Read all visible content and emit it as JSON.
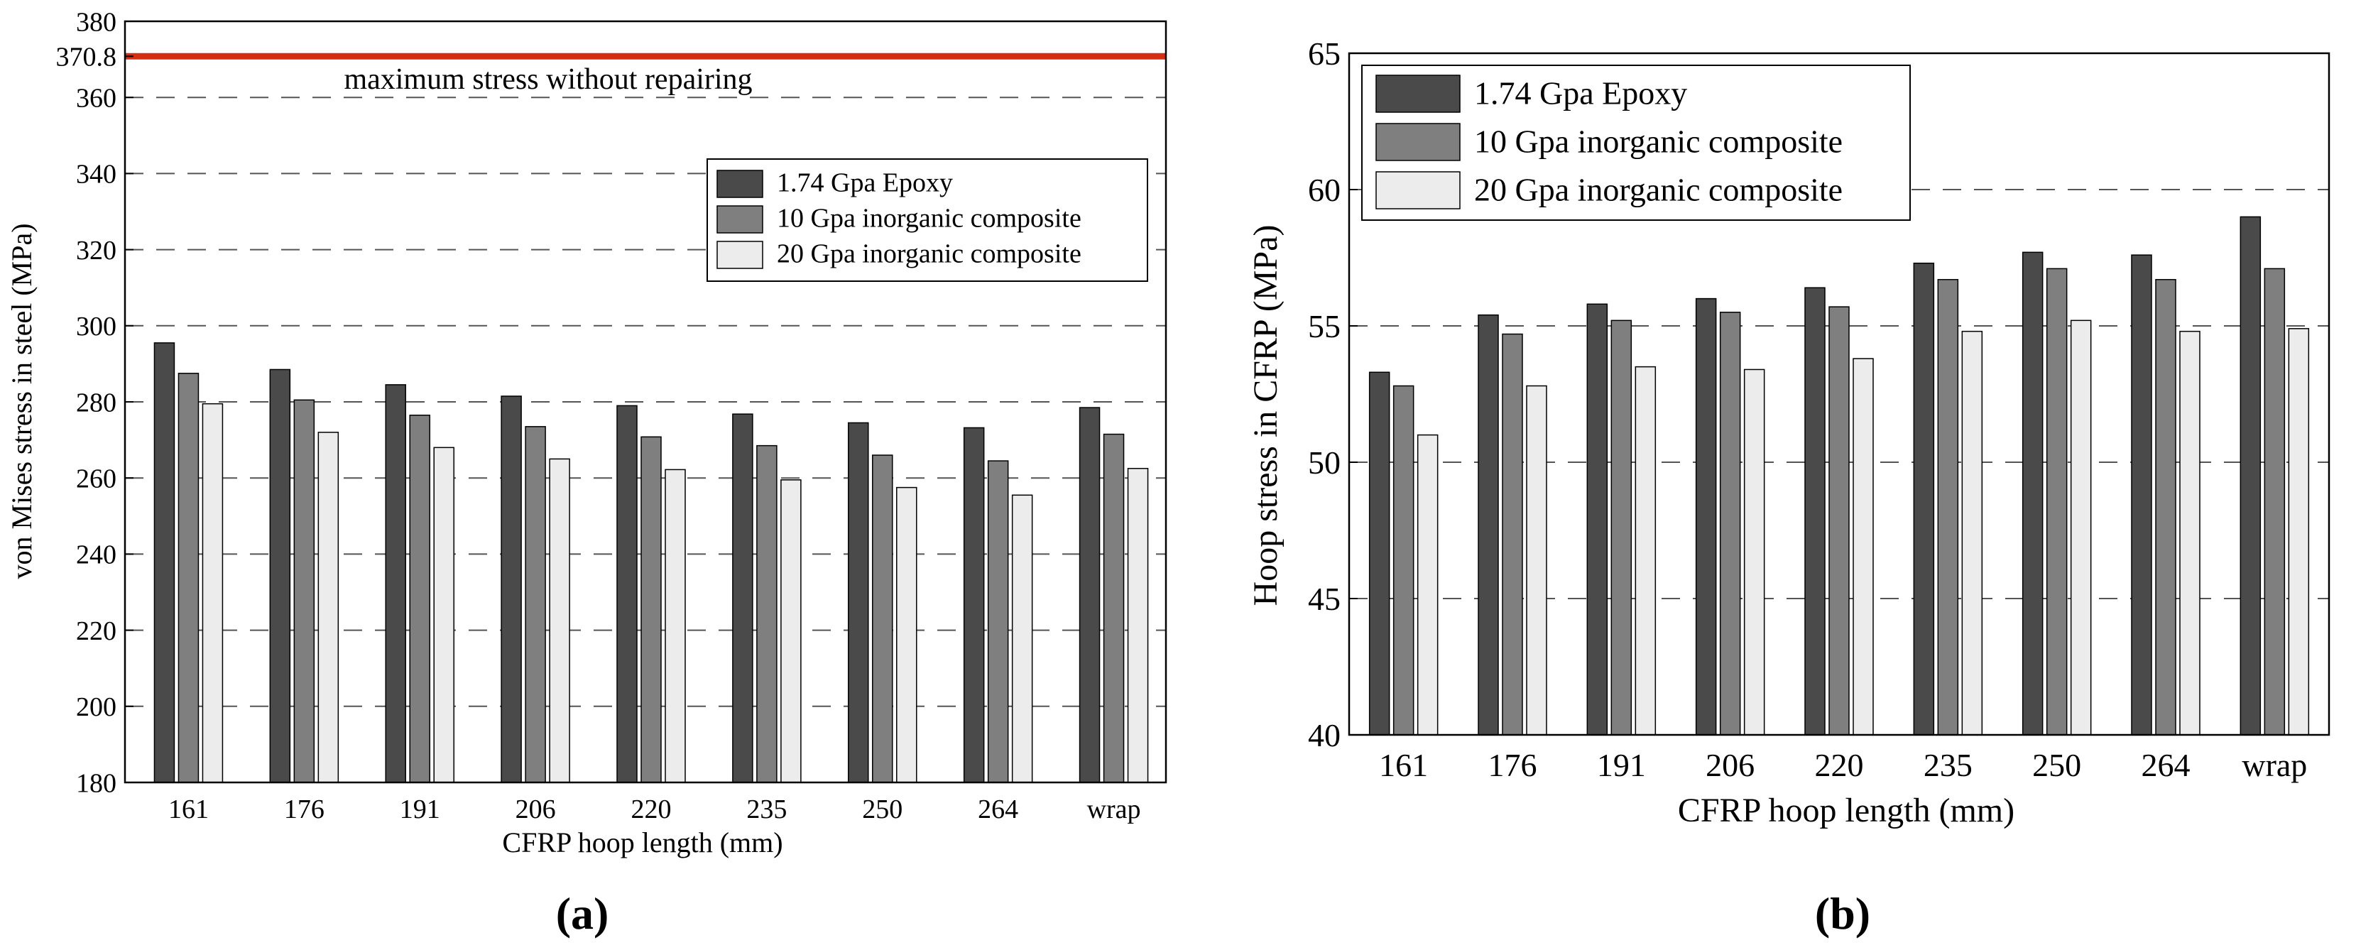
{
  "chart_data": [
    {
      "type": "bar",
      "panel_label": "(a)",
      "categories": [
        "161",
        "176",
        "191",
        "206",
        "220",
        "235",
        "250",
        "264",
        "wrap"
      ],
      "series": [
        {
          "name": "1.74 Gpa Epoxy",
          "color": "#4a4a4a",
          "values": [
            295.5,
            288.5,
            284.5,
            281.5,
            279,
            276.8,
            274.5,
            273.2,
            278.5
          ]
        },
        {
          "name": "10 Gpa inorganic composite",
          "color": "#7f7f7f",
          "values": [
            287.5,
            280.5,
            276.5,
            273.5,
            270.8,
            268.5,
            266,
            264.5,
            271.5
          ]
        },
        {
          "name": "20 Gpa inorganic composite",
          "color": "#ececec",
          "values": [
            279.5,
            272,
            268,
            265,
            262.2,
            259.5,
            257.5,
            255.5,
            262.5
          ]
        }
      ],
      "xlabel": "CFRP hoop length (mm)",
      "ylabel": "von Mises stress in steel (MPa)",
      "ylim": [
        180,
        380
      ],
      "yticks": [
        "180",
        "200",
        "220",
        "240",
        "260",
        "280",
        "300",
        "320",
        "340",
        "360",
        "380"
      ],
      "reference_line": {
        "value": 370.8,
        "tick_label": "370.8",
        "label": "maximum stress without repairing",
        "color": "#d62e12"
      },
      "grid": "dashed horizontal",
      "legend_position": "upper-right"
    },
    {
      "type": "bar",
      "panel_label": "(b)",
      "categories": [
        "161",
        "176",
        "191",
        "206",
        "220",
        "235",
        "250",
        "264",
        "wrap"
      ],
      "series": [
        {
          "name": "1.74 Gpa Epoxy",
          "color": "#4a4a4a",
          "values": [
            53.3,
            55.4,
            55.8,
            56,
            56.4,
            57.3,
            57.7,
            57.6,
            59
          ]
        },
        {
          "name": "10 Gpa inorganic composite",
          "color": "#7f7f7f",
          "values": [
            52.8,
            54.7,
            55.2,
            55.5,
            55.7,
            56.7,
            57.1,
            56.7,
            57.1
          ]
        },
        {
          "name": "20 Gpa inorganic composite",
          "color": "#ececec",
          "values": [
            51,
            52.8,
            53.5,
            53.4,
            53.8,
            54.8,
            55.2,
            54.8,
            54.9
          ]
        }
      ],
      "xlabel": "CFRP hoop length (mm)",
      "ylabel": "Hoop stress in CFRP (MPa)",
      "ylim": [
        40,
        65
      ],
      "yticks": [
        "40",
        "45",
        "50",
        "55",
        "60",
        "65"
      ],
      "grid": "dashed horizontal",
      "legend_position": "upper-left"
    }
  ]
}
